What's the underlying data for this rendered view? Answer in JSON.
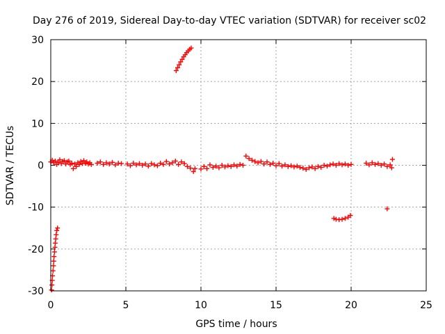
{
  "chart_data": {
    "type": "scatter",
    "title": "Day 276 of 2019, Sidereal Day-to-day VTEC variation (SDTVAR) for receiver sc02",
    "xlabel": "GPS time / hours",
    "ylabel": "SDTVAR / TECUs",
    "xlim": [
      0,
      25
    ],
    "ylim": [
      -30,
      30
    ],
    "xticks": [
      0,
      5,
      10,
      15,
      20,
      25
    ],
    "yticks": [
      -30,
      -20,
      -10,
      0,
      10,
      20,
      30
    ],
    "grid": true,
    "marker": "+",
    "color": "#ff0000",
    "series": [
      {
        "name": "sdtvar",
        "points": [
          [
            0.05,
            -29.8
          ],
          [
            0.08,
            -28.6
          ],
          [
            0.1,
            -27.5
          ],
          [
            0.12,
            -26.4
          ],
          [
            0.15,
            -25.2
          ],
          [
            0.18,
            -24.0
          ],
          [
            0.2,
            -22.9
          ],
          [
            0.22,
            -21.8
          ],
          [
            0.25,
            -20.7
          ],
          [
            0.28,
            -19.6
          ],
          [
            0.3,
            -18.6
          ],
          [
            0.33,
            -17.6
          ],
          [
            0.36,
            -16.6
          ],
          [
            0.4,
            -15.6
          ],
          [
            0.45,
            -15.0
          ],
          [
            0.0,
            0.8
          ],
          [
            0.1,
            1.2
          ],
          [
            0.2,
            0.6
          ],
          [
            0.3,
            1.0
          ],
          [
            0.4,
            0.2
          ],
          [
            0.5,
            0.7
          ],
          [
            0.6,
            1.3
          ],
          [
            0.7,
            0.4
          ],
          [
            0.8,
            0.9
          ],
          [
            0.9,
            1.1
          ],
          [
            1.0,
            0.3
          ],
          [
            1.1,
            0.8
          ],
          [
            1.2,
            1.0
          ],
          [
            1.3,
            0.2
          ],
          [
            1.4,
            0.5
          ],
          [
            1.5,
            -0.8
          ],
          [
            1.6,
            0.3
          ],
          [
            1.7,
            -0.3
          ],
          [
            1.8,
            0.6
          ],
          [
            1.9,
            0.2
          ],
          [
            2.0,
            0.9
          ],
          [
            2.1,
            0.4
          ],
          [
            2.2,
            1.1
          ],
          [
            2.3,
            0.5
          ],
          [
            2.4,
            0.8
          ],
          [
            2.5,
            0.3
          ],
          [
            2.6,
            0.6
          ],
          [
            2.7,
            0.2
          ],
          [
            3.1,
            0.5
          ],
          [
            3.3,
            0.8
          ],
          [
            3.5,
            0.2
          ],
          [
            3.7,
            0.6
          ],
          [
            3.9,
            0.3
          ],
          [
            4.1,
            0.7
          ],
          [
            4.3,
            0.1
          ],
          [
            4.5,
            0.5
          ],
          [
            4.7,
            0.4
          ],
          [
            5.1,
            0.3
          ],
          [
            5.3,
            -0.1
          ],
          [
            5.5,
            0.5
          ],
          [
            5.7,
            0.1
          ],
          [
            5.9,
            0.4
          ],
          [
            6.1,
            0.0
          ],
          [
            6.3,
            0.3
          ],
          [
            6.5,
            -0.2
          ],
          [
            6.7,
            0.4
          ],
          [
            6.9,
            0.1
          ],
          [
            7.1,
            -0.1
          ],
          [
            7.3,
            0.5
          ],
          [
            7.5,
            0.2
          ],
          [
            7.7,
            0.9
          ],
          [
            7.9,
            0.3
          ],
          [
            8.1,
            0.6
          ],
          [
            8.3,
            1.0
          ],
          [
            8.5,
            0.2
          ],
          [
            8.7,
            0.8
          ],
          [
            8.9,
            0.4
          ],
          [
            9.1,
            -0.3
          ],
          [
            9.3,
            -0.7
          ],
          [
            9.5,
            -1.5
          ],
          [
            9.6,
            -0.8
          ],
          [
            8.35,
            22.6
          ],
          [
            8.45,
            23.3
          ],
          [
            8.55,
            24.0
          ],
          [
            8.65,
            24.7
          ],
          [
            8.75,
            25.3
          ],
          [
            8.85,
            25.9
          ],
          [
            8.95,
            26.4
          ],
          [
            9.05,
            26.9
          ],
          [
            9.15,
            27.3
          ],
          [
            9.25,
            27.7
          ],
          [
            9.35,
            28.0
          ],
          [
            10.0,
            -0.9
          ],
          [
            10.2,
            -0.3
          ],
          [
            10.4,
            -0.8
          ],
          [
            10.6,
            0.1
          ],
          [
            10.8,
            -0.5
          ],
          [
            11.0,
            -0.2
          ],
          [
            11.2,
            -0.6
          ],
          [
            11.4,
            0.0
          ],
          [
            11.6,
            -0.4
          ],
          [
            11.8,
            -0.1
          ],
          [
            12.0,
            -0.3
          ],
          [
            12.2,
            0.1
          ],
          [
            12.4,
            -0.2
          ],
          [
            12.6,
            0.2
          ],
          [
            12.8,
            0.0
          ],
          [
            13.0,
            2.2
          ],
          [
            13.2,
            1.6
          ],
          [
            13.4,
            1.2
          ],
          [
            13.6,
            0.9
          ],
          [
            13.8,
            0.6
          ],
          [
            14.0,
            0.9
          ],
          [
            14.2,
            0.3
          ],
          [
            14.4,
            0.8
          ],
          [
            14.6,
            0.2
          ],
          [
            14.8,
            0.5
          ],
          [
            15.0,
            -0.1
          ],
          [
            15.2,
            0.4
          ],
          [
            15.4,
            -0.2
          ],
          [
            15.6,
            0.1
          ],
          [
            15.8,
            -0.3
          ],
          [
            16.0,
            -0.1
          ],
          [
            16.2,
            -0.4
          ],
          [
            16.4,
            -0.2
          ],
          [
            16.6,
            -0.5
          ],
          [
            16.8,
            -0.7
          ],
          [
            17.0,
            -1.0
          ],
          [
            17.2,
            -0.6
          ],
          [
            17.4,
            -0.4
          ],
          [
            17.6,
            -0.8
          ],
          [
            17.8,
            -0.3
          ],
          [
            18.0,
            -0.5
          ],
          [
            18.2,
            0.0
          ],
          [
            18.4,
            -0.2
          ],
          [
            18.6,
            0.1
          ],
          [
            18.8,
            0.3
          ],
          [
            19.0,
            0.0
          ],
          [
            19.2,
            0.4
          ],
          [
            19.4,
            0.1
          ],
          [
            19.6,
            0.3
          ],
          [
            19.8,
            0.0
          ],
          [
            20.0,
            0.2
          ],
          [
            18.85,
            -12.7
          ],
          [
            19.0,
            -12.9
          ],
          [
            19.2,
            -13.0
          ],
          [
            19.4,
            -12.9
          ],
          [
            19.6,
            -12.7
          ],
          [
            19.8,
            -12.4
          ],
          [
            19.95,
            -12.0
          ],
          [
            21.0,
            0.5
          ],
          [
            21.2,
            0.1
          ],
          [
            21.4,
            0.6
          ],
          [
            21.6,
            0.2
          ],
          [
            21.8,
            0.4
          ],
          [
            22.0,
            0.0
          ],
          [
            22.2,
            0.3
          ],
          [
            22.4,
            -0.3
          ],
          [
            22.6,
            0.1
          ],
          [
            22.75,
            1.4
          ],
          [
            22.7,
            -0.6
          ],
          [
            22.4,
            -10.4
          ]
        ]
      }
    ]
  }
}
